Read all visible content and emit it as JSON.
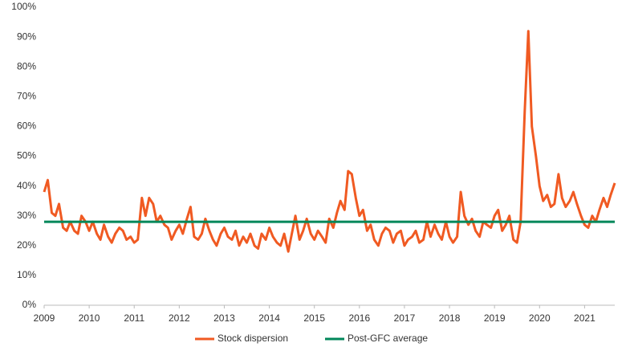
{
  "chart_data": {
    "type": "line",
    "x": [
      2009,
      2009.08,
      2009.17,
      2009.25,
      2009.33,
      2009.42,
      2009.5,
      2009.58,
      2009.67,
      2009.75,
      2009.83,
      2009.92,
      2010,
      2010.08,
      2010.17,
      2010.25,
      2010.33,
      2010.42,
      2010.5,
      2010.58,
      2010.67,
      2010.75,
      2010.83,
      2010.92,
      2011,
      2011.08,
      2011.17,
      2011.25,
      2011.33,
      2011.42,
      2011.5,
      2011.58,
      2011.67,
      2011.75,
      2011.83,
      2011.92,
      2012,
      2012.08,
      2012.17,
      2012.25,
      2012.33,
      2012.42,
      2012.5,
      2012.58,
      2012.67,
      2012.75,
      2012.83,
      2012.92,
      2013,
      2013.08,
      2013.17,
      2013.25,
      2013.33,
      2013.42,
      2013.5,
      2013.58,
      2013.67,
      2013.75,
      2013.83,
      2013.92,
      2014,
      2014.08,
      2014.17,
      2014.25,
      2014.33,
      2014.42,
      2014.5,
      2014.58,
      2014.67,
      2014.75,
      2014.83,
      2014.92,
      2015,
      2015.08,
      2015.17,
      2015.25,
      2015.33,
      2015.42,
      2015.5,
      2015.58,
      2015.67,
      2015.75,
      2015.83,
      2015.92,
      2016,
      2016.08,
      2016.17,
      2016.25,
      2016.33,
      2016.42,
      2016.5,
      2016.58,
      2016.67,
      2016.75,
      2016.83,
      2016.92,
      2017,
      2017.08,
      2017.17,
      2017.25,
      2017.33,
      2017.42,
      2017.5,
      2017.58,
      2017.67,
      2017.75,
      2017.83,
      2017.92,
      2018,
      2018.08,
      2018.17,
      2018.25,
      2018.33,
      2018.42,
      2018.5,
      2018.58,
      2018.67,
      2018.75,
      2018.83,
      2018.92,
      2019,
      2019.08,
      2019.17,
      2019.25,
      2019.33,
      2019.42,
      2019.5,
      2019.58,
      2019.67,
      2019.75,
      2019.83,
      2019.92,
      2020,
      2020.08,
      2020.17,
      2020.25,
      2020.33,
      2020.42,
      2020.5,
      2020.58,
      2020.67,
      2020.75,
      2020.83,
      2020.92,
      2021,
      2021.08,
      2021.17,
      2021.25,
      2021.33,
      2021.42,
      2021.5,
      2021.58,
      2021.67
    ],
    "series": [
      {
        "name": "Stock dispersion",
        "color": "#f05a22",
        "values": [
          38,
          42,
          31,
          30,
          34,
          26,
          25,
          28,
          25,
          24,
          30,
          28,
          25,
          28,
          24,
          22,
          27,
          23,
          21,
          24,
          26,
          25,
          22,
          23,
          21,
          22,
          36,
          30,
          36,
          34,
          28,
          30,
          27,
          26,
          22,
          25,
          27,
          24,
          29,
          33,
          23,
          22,
          24,
          29,
          25,
          22,
          20,
          24,
          26,
          23,
          22,
          25,
          20,
          23,
          21,
          24,
          20,
          19,
          24,
          22,
          26,
          23,
          21,
          20,
          24,
          18,
          24,
          30,
          22,
          25,
          29,
          24,
          22,
          25,
          23,
          21,
          29,
          26,
          31,
          35,
          32,
          45,
          44,
          36,
          30,
          32,
          25,
          27,
          22,
          20,
          24,
          26,
          25,
          21,
          24,
          25,
          20,
          22,
          23,
          25,
          21,
          22,
          28,
          23,
          27,
          24,
          22,
          28,
          23,
          21,
          23,
          38,
          30,
          27,
          29,
          25,
          23,
          28,
          27,
          26,
          30,
          32,
          25,
          27,
          30,
          22,
          21,
          28,
          65,
          92,
          60,
          50,
          40,
          35,
          37,
          33,
          34,
          44,
          36,
          33,
          35,
          38,
          34,
          30,
          27,
          26,
          30,
          28,
          32,
          36,
          33,
          37,
          41
        ]
      },
      {
        "name": "Post-GFC average",
        "color": "#00875a",
        "x": [
          2009,
          2021.67
        ],
        "values": [
          28,
          28
        ]
      }
    ],
    "xlim": [
      2009,
      2021.67
    ],
    "xticks": [
      2009,
      2010,
      2011,
      2012,
      2013,
      2014,
      2015,
      2016,
      2017,
      2018,
      2019,
      2020,
      2021
    ],
    "ylim": [
      0,
      100
    ],
    "yticks": [
      {
        "value": 0,
        "label": "0%"
      },
      {
        "value": 10,
        "label": "10%"
      },
      {
        "value": 20,
        "label": "20%"
      },
      {
        "value": 30,
        "label": "30%"
      },
      {
        "value": 40,
        "label": "40%"
      },
      {
        "value": 50,
        "label": "50%"
      },
      {
        "value": 60,
        "label": "60%"
      },
      {
        "value": 70,
        "label": "70%"
      },
      {
        "value": 80,
        "label": "80%"
      },
      {
        "value": 90,
        "label": "90%"
      },
      {
        "value": 100,
        "label": "100%"
      }
    ],
    "grid": false,
    "legend": "bottom"
  }
}
